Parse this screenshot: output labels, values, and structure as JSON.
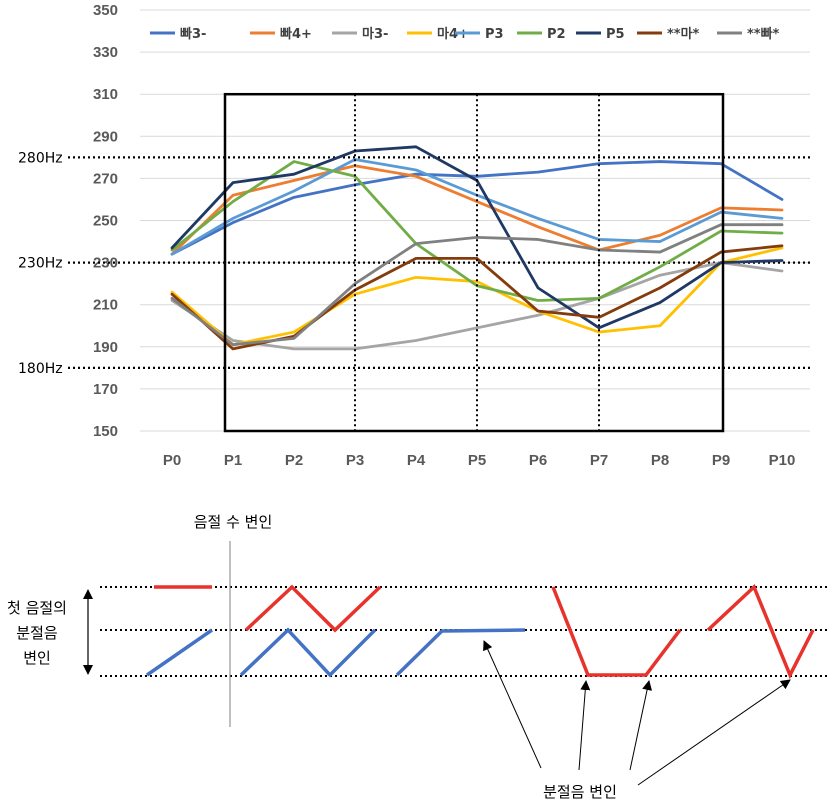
{
  "chart_data": {
    "type": "line",
    "categories": [
      "P0",
      "P1",
      "P2",
      "P3",
      "P4",
      "P5",
      "P6",
      "P7",
      "P8",
      "P9",
      "P10"
    ],
    "ylim": [
      150,
      350
    ],
    "yticks": [
      150,
      170,
      190,
      210,
      230,
      250,
      270,
      290,
      310,
      330,
      350
    ],
    "grid": "horizontal",
    "legend_position": "top",
    "series": [
      {
        "name": "빠3-",
        "color": "#4472C4",
        "values": [
          234,
          249,
          261,
          267,
          272,
          271,
          273,
          277,
          278,
          277,
          260
        ]
      },
      {
        "name": "빠4+",
        "color": "#ED7D31",
        "values": [
          234,
          262,
          269,
          276,
          271,
          259,
          247,
          236,
          243,
          256,
          255
        ]
      },
      {
        "name": "마3-",
        "color": "#A5A5A5",
        "values": [
          212,
          193,
          189,
          189,
          193,
          199,
          205,
          213,
          224,
          230,
          226
        ]
      },
      {
        "name": "마4+",
        "color": "#FFC000",
        "values": [
          216,
          191,
          197,
          215,
          223,
          221,
          207,
          197,
          200,
          230,
          237
        ]
      },
      {
        "name": "P3",
        "color": "#5B9BD5",
        "values": [
          234,
          251,
          264,
          279,
          274,
          262,
          251,
          241,
          240,
          254,
          251
        ]
      },
      {
        "name": "P2",
        "color": "#70AD47",
        "values": [
          236,
          259,
          278,
          271,
          239,
          219,
          212,
          213,
          228,
          245,
          244
        ]
      },
      {
        "name": "P5",
        "color": "#203864",
        "values": [
          237,
          268,
          272,
          283,
          285,
          269,
          218,
          199,
          211,
          230,
          231
        ]
      },
      {
        "name": "**마*",
        "color": "#843C0C",
        "values": [
          215,
          189,
          195,
          217,
          232,
          232,
          207,
          204,
          218,
          235,
          238
        ]
      },
      {
        "name": "**빠*",
        "color": "#808080",
        "values": [
          213,
          191,
          194,
          220,
          239,
          242,
          241,
          236,
          235,
          248,
          248
        ]
      }
    ],
    "reference_lines": [
      {
        "label": "280Hz",
        "value": 280
      },
      {
        "label": "230Hz",
        "value": 230
      },
      {
        "label": "180Hz",
        "value": 180
      }
    ],
    "vertical_dotted_lines_at": [
      "P3",
      "P5",
      "P7"
    ],
    "highlight_box": {
      "from": "P1",
      "to": "P9",
      "y_range": [
        150,
        310
      ]
    }
  },
  "diagram": {
    "syllable_count_label": "음절 수 변인",
    "first_syllable_label": [
      "첫 음절의",
      "분절음",
      "변인"
    ],
    "segment_label": "분절음 변인",
    "colors": {
      "high": "#E8322C",
      "low": "#4472C4"
    }
  }
}
